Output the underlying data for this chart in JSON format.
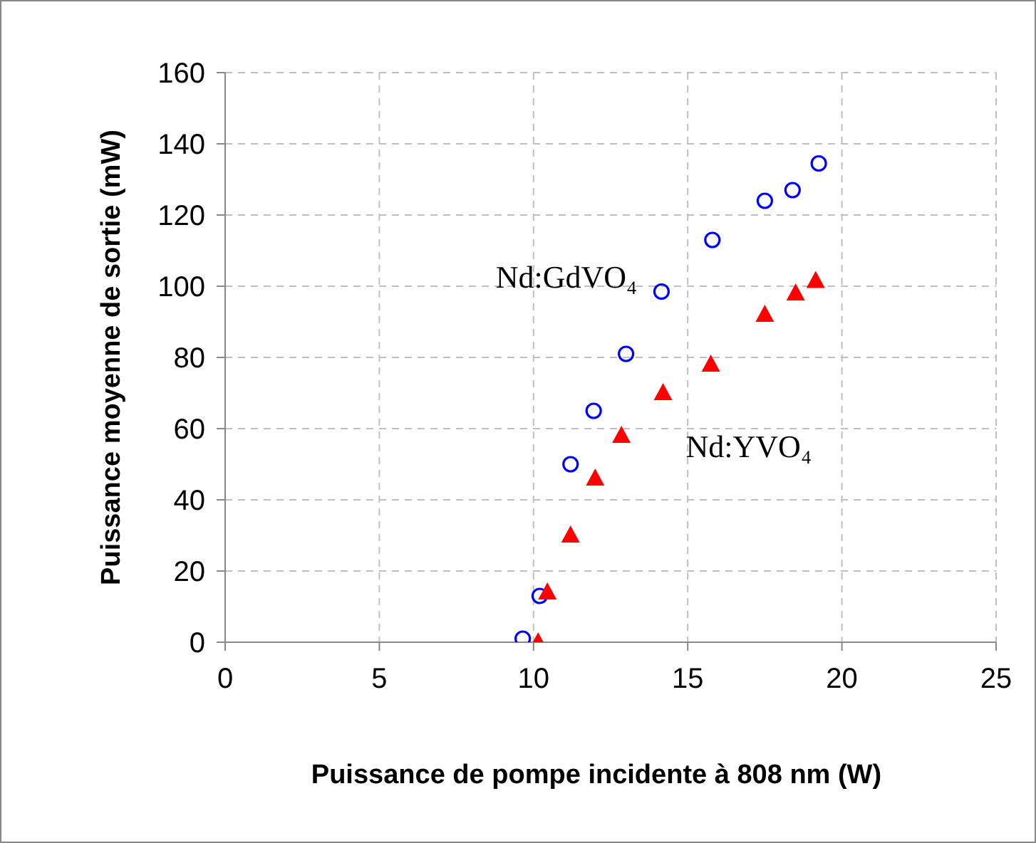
{
  "chart_data": {
    "type": "scatter",
    "xlabel": "Puissance de pompe incidente à 808 nm (W)",
    "ylabel": "Puissance moyenne de sortie (mW)",
    "xlim": [
      0,
      25
    ],
    "xticks": [
      0,
      5,
      10,
      15,
      20,
      25
    ],
    "ylim": [
      0,
      160
    ],
    "yticks": [
      0,
      20,
      40,
      60,
      80,
      100,
      120,
      140,
      160
    ],
    "grid": true,
    "legend": false,
    "series": [
      {
        "name": "Nd:GdVO₄",
        "color": "#0000ff",
        "marker": "circle",
        "x": [
          9.65,
          10.2,
          11.2,
          11.95,
          13.0,
          14.15,
          15.8,
          17.5,
          18.4,
          19.25
        ],
        "values": [
          1,
          13,
          50,
          65,
          81,
          98.5,
          113,
          124,
          127,
          134.5
        ]
      },
      {
        "name": "Nd:YVO₄",
        "color": "#ff0000",
        "marker": "triangle",
        "x": [
          10.15,
          10.45,
          11.2,
          12.0,
          12.85,
          14.2,
          15.75,
          17.5,
          18.5,
          19.15
        ],
        "values": [
          0,
          14,
          30,
          46,
          58,
          70,
          78,
          92,
          98,
          101.5
        ]
      }
    ]
  }
}
